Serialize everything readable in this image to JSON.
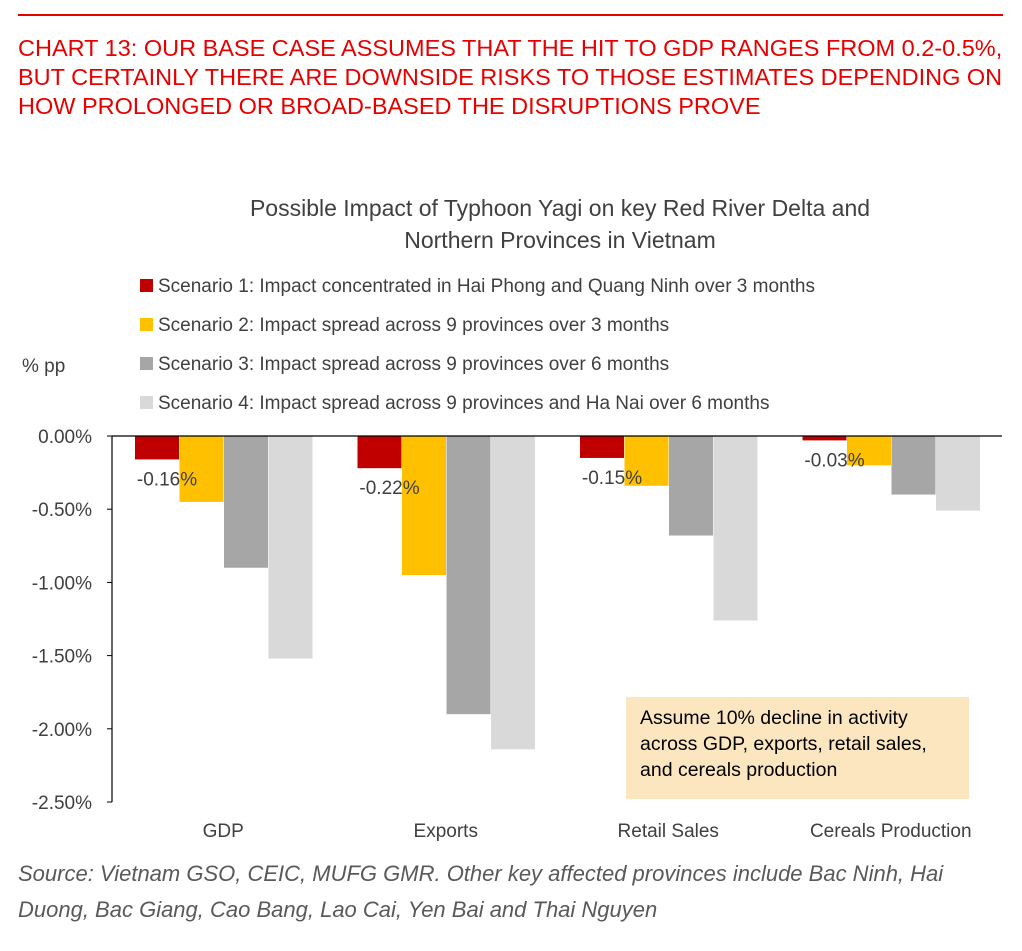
{
  "heading": "CHART 13: OUR BASE CASE ASSUMES THAT THE HIT TO GDP RANGES FROM 0.2-0.5%, BUT CERTAINLY THERE ARE DOWNSIDE RISKS TO THOSE ESTIMATES DEPENDING ON HOW PROLONGED OR BROAD-BASED THE DISRUPTIONS PROVE",
  "source": "Source: Vietnam GSO, CEIC, MUFG GMR.  Other key affected provinces include Bac Ninh, Hai Duong, Bac Giang, Cao Bang, Lao Cai, Yen Bai and Thai Nguyen",
  "note": "Assume 10% decline in activity across GDP, exports, retail sales, and cereals production",
  "colors": {
    "accent": "#e60000",
    "series": [
      "#c00000",
      "#ffc000",
      "#a6a6a6",
      "#d9d9d9"
    ],
    "note_bg": "#fbe6bf"
  },
  "chart_data": {
    "type": "bar",
    "title": [
      "Possible Impact of Typhoon Yagi on key Red River Delta and",
      "Northern Provinces in Vietnam"
    ],
    "ylabel": "% pp",
    "xlabel": "",
    "categories": [
      "GDP",
      "Exports",
      "Retail Sales",
      "Cereals Production"
    ],
    "series": [
      {
        "name": "Scenario 1: Impact concentrated in Hai Phong and Quang Ninh over 3 months",
        "values": [
          -0.16,
          -0.22,
          -0.15,
          -0.03
        ]
      },
      {
        "name": "Scenario 2: Impact spread across 9 provinces over 3 months",
        "values": [
          -0.45,
          -0.95,
          -0.34,
          -0.2
        ]
      },
      {
        "name": "Scenario 3: Impact spread across 9 provinces over 6 months",
        "values": [
          -0.9,
          -1.9,
          -0.68,
          -0.4
        ]
      },
      {
        "name": "Scenario 4: Impact spread across 9 provinces and Ha Nai over 6 months",
        "values": [
          -1.52,
          -2.14,
          -1.26,
          -0.51
        ]
      }
    ],
    "data_labels": [
      "-0.16%",
      "-0.22%",
      "-0.15%",
      "-0.03%"
    ],
    "ylim": [
      -2.5,
      0
    ],
    "yticks": [
      "0.00%",
      "-0.50%",
      "-1.00%",
      "-1.50%",
      "-2.00%",
      "-2.50%"
    ],
    "grid": false,
    "legend_position": "top"
  }
}
